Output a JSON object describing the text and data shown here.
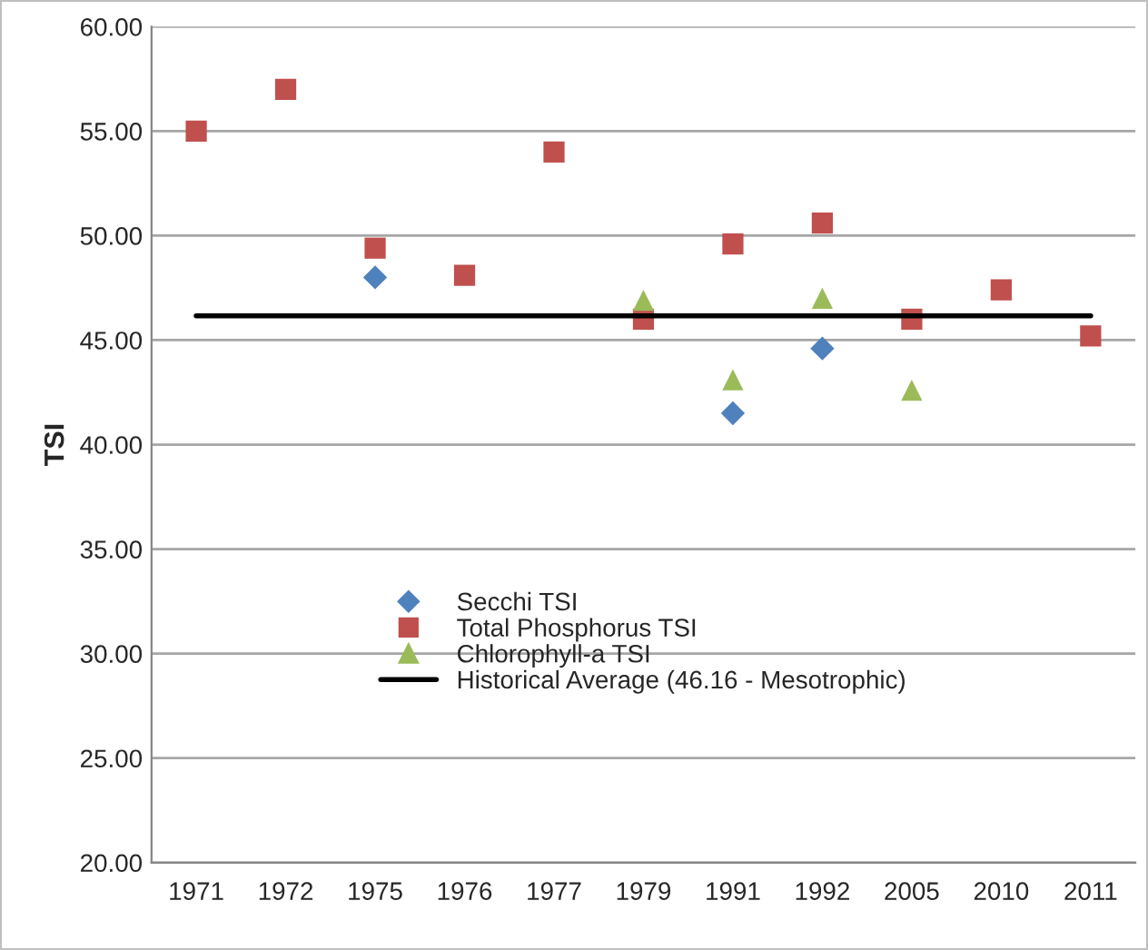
{
  "chart_data": {
    "type": "scatter",
    "ylabel": "TSI",
    "categories": [
      "1971",
      "1972",
      "1975",
      "1976",
      "1977",
      "1979",
      "1991",
      "1992",
      "2005",
      "2010",
      "2011"
    ],
    "series": [
      {
        "name": "Secchi TSI",
        "color": "#4f81bd",
        "marker": "diamond",
        "values": [
          null,
          null,
          48.0,
          null,
          null,
          null,
          41.5,
          44.6,
          null,
          null,
          null
        ]
      },
      {
        "name": "Total Phosphorus TSI",
        "color": "#c0504d",
        "marker": "square",
        "values": [
          55.0,
          57.0,
          49.4,
          48.1,
          54.0,
          46.0,
          49.6,
          50.6,
          46.0,
          47.4,
          45.2
        ]
      },
      {
        "name": "Chlorophyll-a TSI",
        "color": "#9bbb59",
        "marker": "triangle",
        "values": [
          null,
          null,
          null,
          null,
          null,
          46.9,
          43.1,
          47.0,
          42.6,
          null,
          null
        ]
      },
      {
        "name": "Historical Average (46.16 - Mesotrophic)",
        "type": "line",
        "color": "#000000",
        "marker": "none",
        "line_style": "solid",
        "values": [
          46.16,
          46.16,
          46.16,
          46.16,
          46.16,
          46.16,
          46.16,
          46.16,
          46.16,
          46.16,
          46.16
        ]
      }
    ],
    "ylim": [
      20,
      60
    ],
    "yticks": [
      {
        "value": 20,
        "label": "20.00"
      },
      {
        "value": 25,
        "label": "25.00"
      },
      {
        "value": 30,
        "label": "30.00"
      },
      {
        "value": 35,
        "label": "35.00"
      },
      {
        "value": 40,
        "label": "40.00"
      },
      {
        "value": 45,
        "label": "45.00"
      },
      {
        "value": 50,
        "label": "50.00"
      },
      {
        "value": 55,
        "label": "55.00"
      },
      {
        "value": 60,
        "label": "60.00"
      }
    ],
    "grid": "y",
    "legend": "bottom"
  }
}
